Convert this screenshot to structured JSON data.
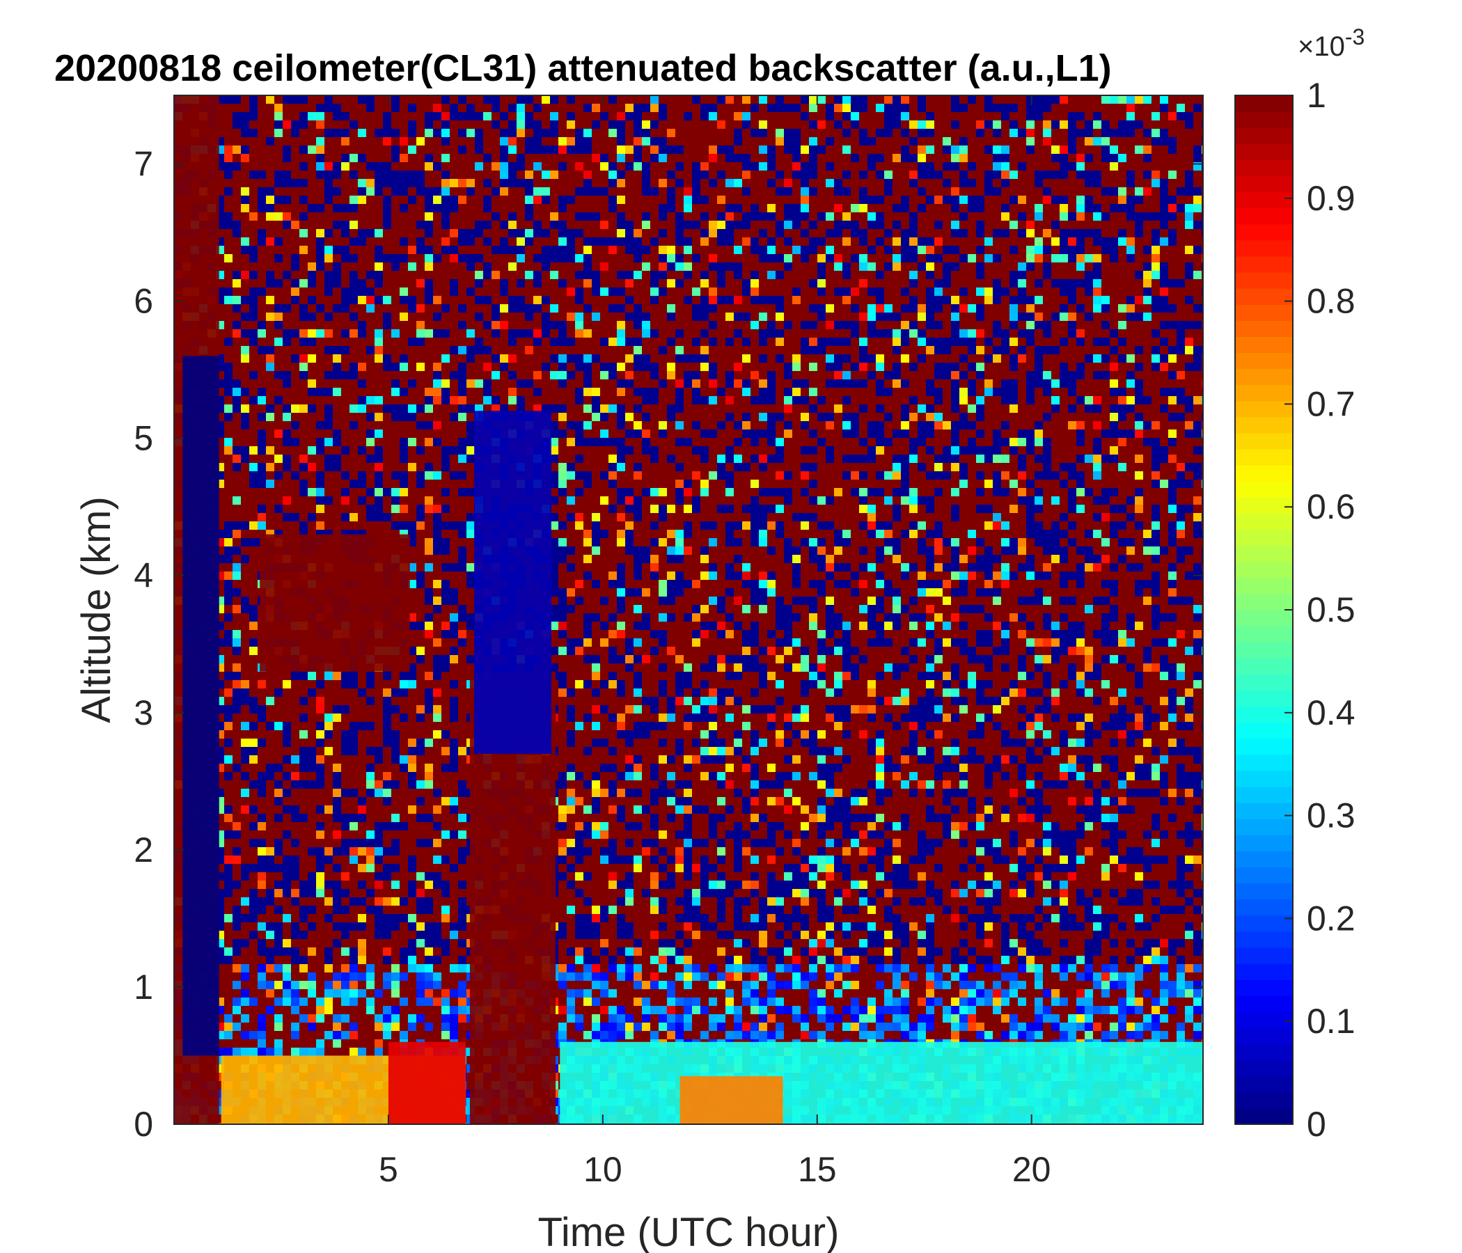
{
  "chart_data": {
    "type": "heatmap",
    "title": "20200818 ceilometer(CL31) attenuated backscatter (a.u.,L1)",
    "xlabel": "Time (UTC hour)",
    "ylabel": "Altitude (km)",
    "xlim": [
      0,
      24
    ],
    "ylim": [
      0,
      7.5
    ],
    "x_ticks": [
      5,
      10,
      15,
      20
    ],
    "y_ticks": [
      0,
      1,
      2,
      3,
      4,
      5,
      6,
      7
    ],
    "colorbar": {
      "colormap": "jet",
      "clim": [
        0,
        1
      ],
      "ticks": [
        0,
        0.1,
        0.2,
        0.3,
        0.4,
        0.5,
        0.6,
        0.7,
        0.8,
        0.9,
        1
      ],
      "exponent_label": "×10",
      "exponent_power": "-3"
    },
    "features": [
      {
        "name": "saturated column",
        "x": [
          0,
          1.05
        ],
        "y": [
          0,
          7.5
        ],
        "value": 1
      },
      {
        "name": "low-signal column",
        "x": [
          0.2,
          1.05
        ],
        "y": [
          0.5,
          5.6
        ],
        "value": 0
      },
      {
        "name": "saturated column",
        "x": [
          6.9,
          8.9
        ],
        "y": [
          0,
          3.3
        ],
        "value": 1
      },
      {
        "name": "low-signal region",
        "x": [
          7.0,
          8.8
        ],
        "y": [
          2.7,
          5.2
        ],
        "value": 0.05
      },
      {
        "name": "boundary layer aerosol",
        "x": [
          1.1,
          6.8
        ],
        "y": [
          0,
          0.5
        ],
        "value": 0.7
      },
      {
        "name": "boundary layer aerosol",
        "x": [
          9,
          24
        ],
        "y": [
          0,
          0.6
        ],
        "value": 0.4
      },
      {
        "name": "aerosol layer",
        "x": [
          5.0,
          6.8
        ],
        "y": [
          0,
          0.6
        ],
        "value": 0.9
      },
      {
        "name": "aerosol layer",
        "x": [
          11.8,
          14.2
        ],
        "y": [
          0,
          0.35
        ],
        "value": 0.75
      },
      {
        "name": "elevated layer",
        "x": [
          2.0,
          5.5
        ],
        "y": [
          3.3,
          4.3
        ],
        "value": 1
      }
    ],
    "grid": false,
    "legend": "colorbar-right"
  }
}
